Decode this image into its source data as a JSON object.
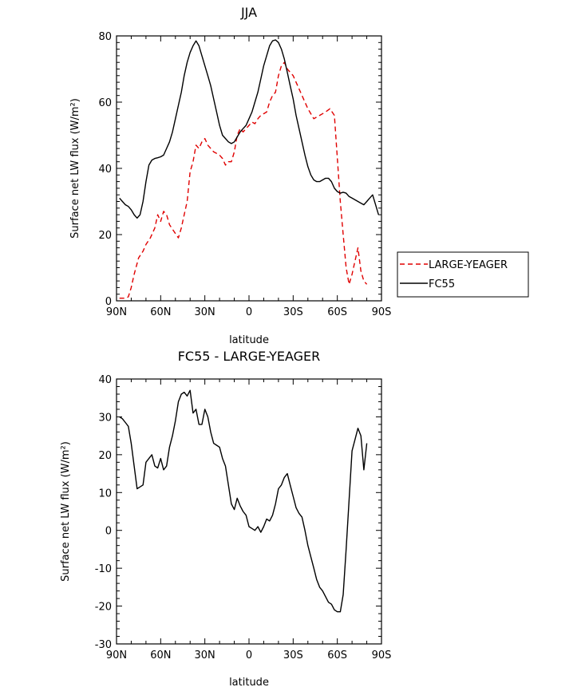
{
  "chart_data": [
    {
      "type": "line",
      "title": "JJA",
      "xlabel": "latitude",
      "ylabel": "Surface net LW flux (W/m²)",
      "xlim": [
        90,
        -90
      ],
      "ylim": [
        0,
        80
      ],
      "xticks": [
        90,
        60,
        30,
        0,
        -30,
        -60,
        -90
      ],
      "xtick_labels": [
        "90N",
        "60N",
        "30N",
        "0",
        "30S",
        "60S",
        "90S"
      ],
      "yticks": [
        0,
        20,
        40,
        60,
        80
      ],
      "ytick_labels": [
        "0",
        "20",
        "40",
        "60",
        "80"
      ],
      "legend": {
        "placement": "right, outside plot"
      },
      "series": [
        {
          "name": "LARGE-YEAGER",
          "color": "#e00000",
          "style": "dashed",
          "x": [
            88,
            84,
            82,
            80,
            78,
            75,
            72,
            70,
            67,
            64,
            62,
            60,
            58,
            56,
            54,
            51,
            48,
            46,
            44,
            42,
            40,
            38,
            36,
            34,
            32,
            30,
            28,
            26,
            24,
            22,
            20,
            18,
            16,
            14,
            12,
            10,
            8,
            6,
            4,
            2,
            0,
            -2,
            -4,
            -6,
            -8,
            -10,
            -12,
            -14,
            -16,
            -18,
            -20,
            -22,
            -24,
            -26,
            -28,
            -30,
            -33,
            -36,
            -40,
            -44,
            -48,
            -52,
            -55,
            -58,
            -60,
            -62,
            -64,
            -66,
            -68,
            -70,
            -72,
            -74,
            -76,
            -78,
            -80
          ],
          "values": [
            0.8,
            0.8,
            1.2,
            4,
            8,
            13,
            15,
            17,
            19,
            22,
            26,
            24,
            27,
            26,
            23,
            21,
            19,
            22,
            26,
            30,
            39,
            42,
            47,
            46,
            48,
            49,
            47,
            46,
            45,
            44.5,
            44,
            43,
            41,
            42,
            42,
            45,
            50,
            52,
            51,
            52,
            53,
            54,
            53.5,
            55,
            56,
            56.5,
            57,
            60,
            62,
            63,
            68,
            71,
            72,
            70,
            69,
            68,
            65,
            62,
            58,
            55,
            56,
            57,
            58,
            56,
            43,
            30,
            20,
            10,
            5,
            8,
            12,
            16,
            9,
            6,
            5
          ]
        },
        {
          "name": "FC55",
          "color": "#000000",
          "style": "solid",
          "x": [
            88,
            86,
            84,
            82,
            80,
            78,
            76,
            74,
            72,
            70,
            68,
            66,
            64,
            62,
            60,
            58,
            56,
            54,
            52,
            50,
            48,
            46,
            44,
            42,
            40,
            38,
            36,
            34,
            32,
            30,
            28,
            26,
            24,
            22,
            20,
            18,
            16,
            14,
            12,
            10,
            8,
            6,
            4,
            2,
            0,
            -2,
            -4,
            -6,
            -8,
            -10,
            -12,
            -14,
            -16,
            -18,
            -20,
            -22,
            -24,
            -26,
            -28,
            -30,
            -32,
            -34,
            -36,
            -38,
            -40,
            -42,
            -44,
            -46,
            -48,
            -50,
            -52,
            -54,
            -56,
            -58,
            -60,
            -62,
            -64,
            -66,
            -68,
            -70,
            -72,
            -74,
            -76,
            -78,
            -80,
            -82,
            -84,
            -86,
            -88
          ],
          "values": [
            31,
            30,
            29,
            28.5,
            27.5,
            26,
            25,
            26,
            30,
            36,
            41,
            42.5,
            43,
            43.2,
            43.5,
            44,
            46,
            48,
            51,
            55,
            59,
            63,
            68,
            72,
            75,
            77,
            78.5,
            77,
            74,
            71,
            68,
            65,
            61,
            57,
            53,
            50,
            49,
            48,
            47.5,
            48,
            49.5,
            51,
            52,
            53,
            55,
            57,
            60,
            63,
            67,
            71,
            74,
            77,
            78.5,
            78.8,
            78,
            76,
            73,
            69,
            65,
            61,
            56,
            52,
            48,
            44,
            40.5,
            38,
            36.5,
            36,
            36,
            36.5,
            37,
            37,
            36,
            34,
            33,
            32.5,
            32.8,
            32.5,
            31.5,
            31,
            30.5,
            30,
            29.5,
            29,
            30,
            31,
            32,
            29,
            26
          ]
        }
      ]
    },
    {
      "type": "line",
      "title": "FC55 - LARGE-YEAGER",
      "xlabel": "latitude",
      "ylabel": "Surface net LW flux (W/m²)",
      "xlim": [
        90,
        -90
      ],
      "ylim": [
        -30,
        40
      ],
      "xticks": [
        90,
        60,
        30,
        0,
        -30,
        -60,
        -90
      ],
      "xtick_labels": [
        "90N",
        "60N",
        "30N",
        "0",
        "30S",
        "60S",
        "90S"
      ],
      "yticks": [
        -30,
        -20,
        -10,
        0,
        10,
        20,
        30,
        40
      ],
      "ytick_labels": [
        "-30",
        "-20",
        "-10",
        "0",
        "10",
        "20",
        "30",
        "40"
      ],
      "series": [
        {
          "name": "FC55 - LARGE-YEAGER",
          "color": "#000000",
          "style": "solid",
          "x": [
            88,
            86,
            84,
            82,
            80,
            78,
            76,
            74,
            72,
            70,
            68,
            66,
            64,
            62,
            60,
            58,
            56,
            54,
            52,
            50,
            48,
            46,
            44,
            42,
            40,
            38,
            36,
            34,
            32,
            30,
            28,
            26,
            24,
            22,
            20,
            18,
            16,
            14,
            12,
            10,
            8,
            6,
            4,
            2,
            0,
            -2,
            -4,
            -6,
            -8,
            -10,
            -12,
            -14,
            -16,
            -18,
            -20,
            -22,
            -24,
            -26,
            -28,
            -30,
            -32,
            -34,
            -36,
            -38,
            -40,
            -42,
            -44,
            -46,
            -48,
            -50,
            -52,
            -54,
            -56,
            -58,
            -60,
            -62,
            -64,
            -66,
            -68,
            -70,
            -72,
            -74,
            -76,
            -78,
            -80
          ],
          "values": [
            30,
            29.5,
            28.5,
            27.5,
            23,
            17,
            11,
            11.5,
            12,
            18,
            19,
            20,
            17,
            16.5,
            19,
            16,
            17,
            22,
            25,
            29,
            34,
            36,
            36.5,
            35.5,
            37,
            31,
            32,
            28,
            28,
            32,
            30,
            26,
            23,
            22.5,
            22,
            19,
            17,
            12,
            7,
            5.5,
            8.5,
            6.5,
            5,
            4,
            1,
            0.5,
            0,
            1,
            -0.5,
            1,
            3,
            2.5,
            4,
            7,
            11,
            12,
            14,
            15,
            12,
            9,
            6,
            4.5,
            3.5,
            0,
            -4,
            -7,
            -10,
            -13,
            -15,
            -16,
            -17.5,
            -19,
            -19.5,
            -21,
            -21.5,
            -21.5,
            -17,
            -5,
            8,
            21,
            24,
            27,
            25,
            16,
            23
          ]
        }
      ]
    }
  ]
}
